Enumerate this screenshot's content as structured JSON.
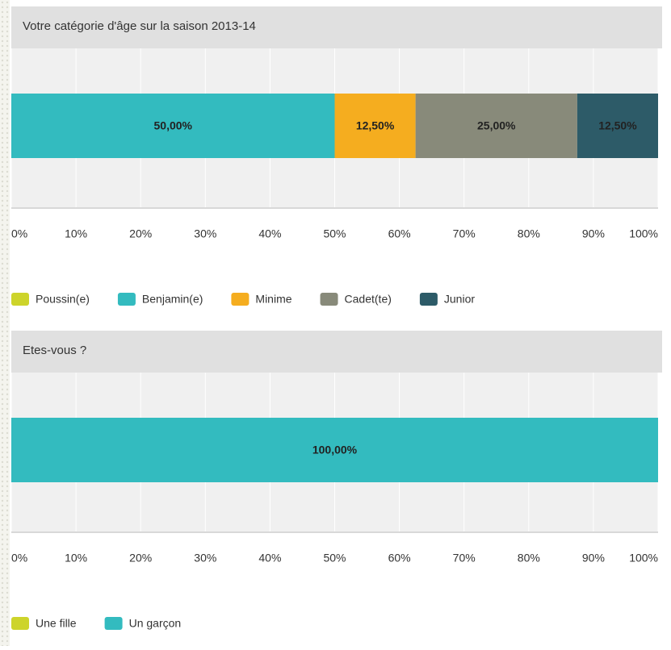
{
  "chart_data": [
    {
      "type": "bar",
      "title": "Votre catégorie d'âge sur la saison 2013-14",
      "series": [
        {
          "name": "Poussin(e)",
          "color": "#cdd42b",
          "values": [
            0
          ]
        },
        {
          "name": "Benjamin(e)",
          "color": "#33bbbf",
          "values": [
            50
          ],
          "value_labels": [
            "50,00%"
          ]
        },
        {
          "name": "Minime",
          "color": "#f5ad1f",
          "values": [
            12.5
          ],
          "value_labels": [
            "12,50%"
          ]
        },
        {
          "name": "Cadet(te)",
          "color": "#888a7a",
          "values": [
            25
          ],
          "value_labels": [
            "25,00%"
          ]
        },
        {
          "name": "Junior",
          "color": "#2d5b68",
          "values": [
            12.5
          ],
          "value_labels": [
            "12,50%"
          ]
        }
      ],
      "xlim": [
        0,
        100
      ],
      "xticks": [
        {
          "value": 0,
          "label": "0%"
        },
        {
          "value": 10,
          "label": "10%"
        },
        {
          "value": 20,
          "label": "20%"
        },
        {
          "value": 30,
          "label": "30%"
        },
        {
          "value": 40,
          "label": "40%"
        },
        {
          "value": 50,
          "label": "50%"
        },
        {
          "value": 60,
          "label": "60%"
        },
        {
          "value": 70,
          "label": "70%"
        },
        {
          "value": 80,
          "label": "80%"
        },
        {
          "value": 90,
          "label": "90%"
        },
        {
          "value": 100,
          "label": "100%"
        }
      ],
      "grid": true
    },
    {
      "type": "bar",
      "title": "Etes-vous ?",
      "series": [
        {
          "name": "Une fille",
          "color": "#cdd42b",
          "values": [
            0
          ]
        },
        {
          "name": "Un garçon",
          "color": "#33bbbf",
          "values": [
            100
          ],
          "value_labels": [
            "100,00%"
          ]
        }
      ],
      "xlim": [
        0,
        100
      ],
      "xticks": [
        {
          "value": 0,
          "label": "0%"
        },
        {
          "value": 10,
          "label": "10%"
        },
        {
          "value": 20,
          "label": "20%"
        },
        {
          "value": 30,
          "label": "30%"
        },
        {
          "value": 40,
          "label": "40%"
        },
        {
          "value": 50,
          "label": "50%"
        },
        {
          "value": 60,
          "label": "60%"
        },
        {
          "value": 70,
          "label": "70%"
        },
        {
          "value": 80,
          "label": "80%"
        },
        {
          "value": 90,
          "label": "90%"
        },
        {
          "value": 100,
          "label": "100%"
        }
      ],
      "grid": true
    }
  ]
}
